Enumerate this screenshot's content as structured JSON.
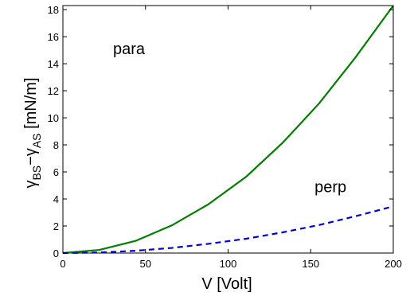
{
  "chart_data": {
    "type": "line",
    "xlabel": "V [Volt]",
    "ylabel": "γ_BS−γ_AS [mN/m]",
    "ylabel_parts": {
      "gamma1": "γ",
      "sub1": "BS",
      "minus": "−",
      "gamma2": "γ",
      "sub2": "AS",
      "unit": " [mN/m]"
    },
    "xlim": [
      0,
      200
    ],
    "ylim": [
      0,
      18.3
    ],
    "xticks": [
      0,
      50,
      100,
      150,
      200
    ],
    "yticks": [
      0,
      2,
      4,
      6,
      8,
      10,
      12,
      14,
      16,
      18
    ],
    "grid": false,
    "annotations": [
      {
        "text": "para",
        "x": 40,
        "y": 14.7
      },
      {
        "text": "perp",
        "x": 162,
        "y": 4.5
      }
    ],
    "series": [
      {
        "color": "#007f00",
        "dash": "solid",
        "x": [
          0,
          22,
          44,
          66,
          88,
          111,
          133,
          155,
          177,
          200
        ],
        "y": [
          0,
          0.23,
          0.9,
          2.05,
          3.6,
          5.65,
          8.15,
          11.05,
          14.45,
          18.3
        ]
      },
      {
        "color": "#0000d8",
        "dash": "dashed",
        "x": [
          0,
          22,
          44,
          66,
          88,
          111,
          133,
          155,
          177,
          200
        ],
        "y": [
          0,
          0.04,
          0.17,
          0.38,
          0.68,
          1.06,
          1.53,
          2.07,
          2.72,
          3.45
        ]
      }
    ]
  }
}
